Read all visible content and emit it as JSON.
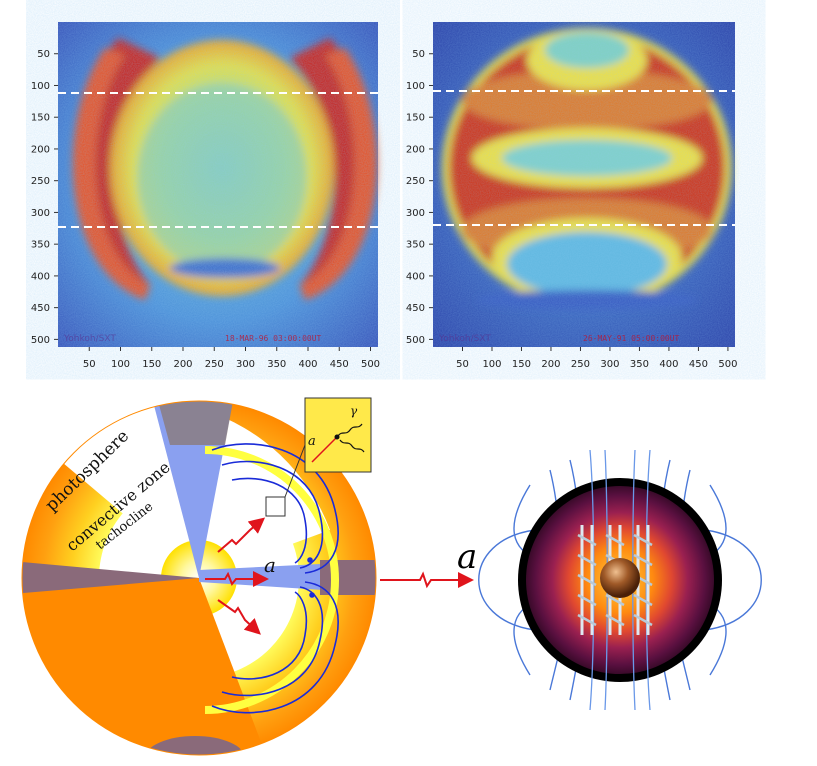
{
  "heatmaps": [
    {
      "id": "left",
      "y_ticks": [
        "50",
        "100",
        "150",
        "200",
        "250",
        "300",
        "350",
        "400",
        "450",
        "500"
      ],
      "x_ticks": [
        "50",
        "100",
        "150",
        "200",
        "250",
        "300",
        "350",
        "400",
        "450",
        "500"
      ],
      "watermark": "Yohkoh/SXT",
      "timestamp": "18-MAR-96 03:00:00UT"
    },
    {
      "id": "right",
      "y_ticks": [
        "50",
        "100",
        "150",
        "200",
        "250",
        "300",
        "350",
        "400",
        "450",
        "500"
      ],
      "x_ticks": [
        "50",
        "100",
        "150",
        "200",
        "250",
        "300",
        "350",
        "400",
        "450",
        "500"
      ],
      "watermark": "Yohkoh/SXT",
      "timestamp": "26-MAY-91 05:00:00UT"
    }
  ],
  "sun_diagram": {
    "labels": {
      "photosphere": "photosphere",
      "convective_zone": "convective zone",
      "tachocline": "tachocline",
      "axion": "a",
      "inset_axion": "a",
      "inset_gamma": "γ"
    }
  },
  "star_diagram": {
    "axion_label": "a"
  },
  "colors": {
    "hot_red": "#c8201a",
    "field_line": "#1a2bd8",
    "axion_arrow": "#e0141c",
    "sun_orange": "#ff8a00"
  }
}
